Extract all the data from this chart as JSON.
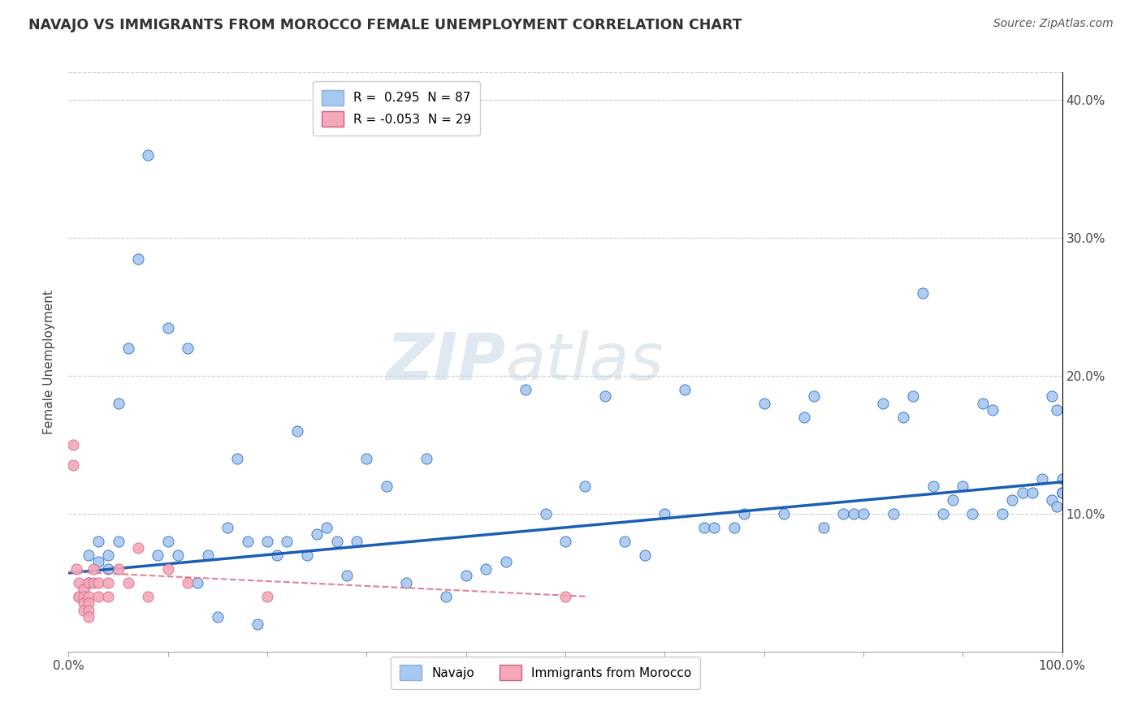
{
  "title": "NAVAJO VS IMMIGRANTS FROM MOROCCO FEMALE UNEMPLOYMENT CORRELATION CHART",
  "source": "Source: ZipAtlas.com",
  "xlabel": "",
  "ylabel": "Female Unemployment",
  "xlim": [
    0,
    1.0
  ],
  "ylim": [
    0,
    0.42
  ],
  "xticks": [
    0.0,
    0.1,
    0.2,
    0.3,
    0.4,
    0.5,
    0.6,
    0.7,
    0.8,
    0.9,
    1.0
  ],
  "xticklabels": [
    "0.0%",
    "",
    "",
    "",
    "",
    "",
    "",
    "",
    "",
    "",
    "100.0%"
  ],
  "yticks": [
    0.0,
    0.1,
    0.2,
    0.3,
    0.4
  ],
  "yticklabels": [
    "",
    "10.0%",
    "20.0%",
    "30.0%",
    "40.0%"
  ],
  "navajo_R": 0.295,
  "navajo_N": 87,
  "morocco_R": -0.053,
  "morocco_N": 29,
  "navajo_color": "#a8c8f0",
  "morocco_color": "#f4a8b8",
  "navajo_line_color": "#1a5fb4",
  "morocco_line_color": "#e08098",
  "watermark_zip": "ZIP",
  "watermark_atlas": "atlas",
  "navajo_x": [
    0.02,
    0.02,
    0.03,
    0.03,
    0.04,
    0.04,
    0.05,
    0.05,
    0.06,
    0.07,
    0.08,
    0.09,
    0.1,
    0.1,
    0.11,
    0.12,
    0.13,
    0.14,
    0.15,
    0.16,
    0.17,
    0.18,
    0.19,
    0.2,
    0.21,
    0.22,
    0.23,
    0.24,
    0.25,
    0.26,
    0.27,
    0.28,
    0.29,
    0.3,
    0.32,
    0.34,
    0.36,
    0.38,
    0.4,
    0.42,
    0.44,
    0.46,
    0.48,
    0.5,
    0.52,
    0.54,
    0.56,
    0.58,
    0.6,
    0.62,
    0.64,
    0.65,
    0.67,
    0.68,
    0.7,
    0.72,
    0.74,
    0.75,
    0.76,
    0.78,
    0.79,
    0.8,
    0.82,
    0.83,
    0.84,
    0.85,
    0.86,
    0.87,
    0.88,
    0.89,
    0.9,
    0.91,
    0.92,
    0.93,
    0.94,
    0.95,
    0.96,
    0.97,
    0.98,
    0.99,
    0.99,
    0.995,
    0.995,
    1.0,
    1.0,
    1.0,
    1.0
  ],
  "navajo_y": [
    0.07,
    0.05,
    0.08,
    0.065,
    0.07,
    0.06,
    0.18,
    0.08,
    0.22,
    0.285,
    0.36,
    0.07,
    0.08,
    0.235,
    0.07,
    0.22,
    0.05,
    0.07,
    0.025,
    0.09,
    0.14,
    0.08,
    0.02,
    0.08,
    0.07,
    0.08,
    0.16,
    0.07,
    0.085,
    0.09,
    0.08,
    0.055,
    0.08,
    0.14,
    0.12,
    0.05,
    0.14,
    0.04,
    0.055,
    0.06,
    0.065,
    0.19,
    0.1,
    0.08,
    0.12,
    0.185,
    0.08,
    0.07,
    0.1,
    0.19,
    0.09,
    0.09,
    0.09,
    0.1,
    0.18,
    0.1,
    0.17,
    0.185,
    0.09,
    0.1,
    0.1,
    0.1,
    0.18,
    0.1,
    0.17,
    0.185,
    0.26,
    0.12,
    0.1,
    0.11,
    0.12,
    0.1,
    0.18,
    0.175,
    0.1,
    0.11,
    0.115,
    0.115,
    0.125,
    0.11,
    0.185,
    0.175,
    0.105,
    0.115,
    0.115,
    0.115,
    0.125
  ],
  "morocco_x": [
    0.005,
    0.005,
    0.008,
    0.01,
    0.01,
    0.01,
    0.015,
    0.015,
    0.015,
    0.015,
    0.02,
    0.02,
    0.02,
    0.02,
    0.02,
    0.025,
    0.025,
    0.03,
    0.03,
    0.04,
    0.04,
    0.05,
    0.06,
    0.07,
    0.08,
    0.1,
    0.12,
    0.2,
    0.5
  ],
  "morocco_y": [
    0.15,
    0.135,
    0.06,
    0.05,
    0.04,
    0.04,
    0.045,
    0.04,
    0.035,
    0.03,
    0.05,
    0.04,
    0.035,
    0.03,
    0.025,
    0.06,
    0.05,
    0.05,
    0.04,
    0.05,
    0.04,
    0.06,
    0.05,
    0.075,
    0.04,
    0.06,
    0.05,
    0.04,
    0.04
  ],
  "navajo_trend_x": [
    0.0,
    1.0
  ],
  "navajo_trend_y": [
    0.057,
    0.123
  ],
  "morocco_trend_x": [
    0.0,
    0.52
  ],
  "morocco_trend_y": [
    0.058,
    0.04
  ]
}
